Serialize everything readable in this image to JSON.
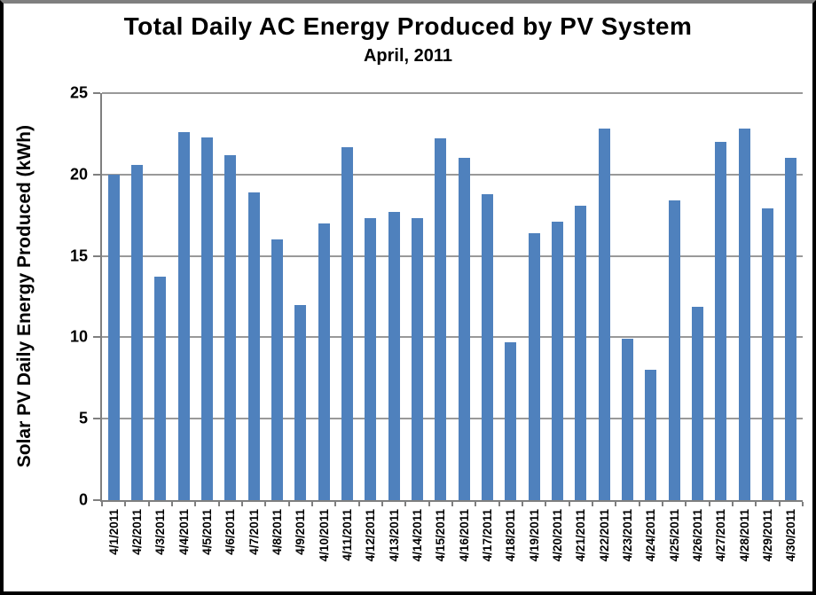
{
  "chart": {
    "title": "Total Daily AC Energy Produced by PV System",
    "subtitle": "April, 2011",
    "ylabel": "Solar PV Daily Energy Produced (kWh)"
  },
  "chart_data": {
    "type": "bar",
    "title": "Total Daily AC Energy Produced by PV System",
    "subtitle": "April, 2011",
    "xlabel": "",
    "ylabel": "Solar PV Daily Energy Produced (kWh)",
    "ylim": [
      0,
      25
    ],
    "yticks": [
      0,
      5,
      10,
      15,
      20,
      25
    ],
    "grid": true,
    "legend": false,
    "bar_color": "#4F81BD",
    "gridline_color": "#999999",
    "axis_color": "#7f7f7f",
    "categories": [
      "4/1/2011",
      "4/2/2011",
      "4/3/2011",
      "4/4/2011",
      "4/5/2011",
      "4/6/2011",
      "4/7/2011",
      "4/8/2011",
      "4/9/2011",
      "4/10/2011",
      "4/11/2011",
      "4/12/2011",
      "4/13/2011",
      "4/14/2011",
      "4/15/2011",
      "4/16/2011",
      "4/17/2011",
      "4/18/2011",
      "4/19/2011",
      "4/20/2011",
      "4/21/2011",
      "4/22/2011",
      "4/23/2011",
      "4/24/2011",
      "4/25/2011",
      "4/26/2011",
      "4/27/2011",
      "4/28/2011",
      "4/29/2011",
      "4/30/2011"
    ],
    "values": [
      20.0,
      20.6,
      13.7,
      22.6,
      22.3,
      21.2,
      18.9,
      16.0,
      12.0,
      17.0,
      21.7,
      17.3,
      17.7,
      17.3,
      22.2,
      21.0,
      18.8,
      9.7,
      16.4,
      17.1,
      18.1,
      22.8,
      9.9,
      8.0,
      18.4,
      11.9,
      22.0,
      22.8,
      17.9,
      21.0
    ]
  }
}
